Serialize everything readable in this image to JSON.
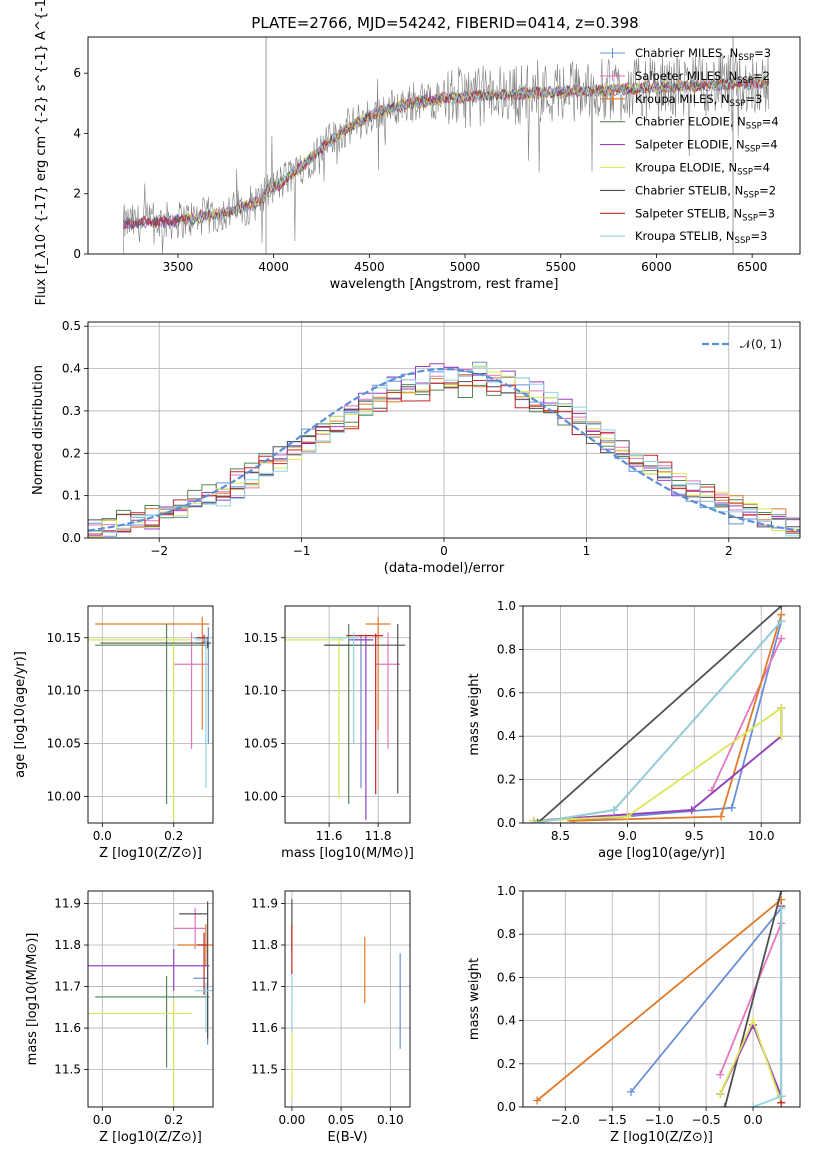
{
  "figure_title": "PLATE=2766, MJD=54242, FIBERID=0414, z=0.398",
  "colors": {
    "Chabrier MILES": "#6a8fd8",
    "Salpeter MILES": "#e377c2",
    "Kroupa MILES": "#e07b2a",
    "Chabrier ELODIE": "#55865a",
    "Salpeter ELODIE": "#9b3fc4",
    "Kroupa ELODIE": "#dce65a",
    "Chabrier STELIB": "#505050",
    "Salpeter STELIB": "#c0282a",
    "Kroupa STELIB": "#8fd6e3",
    "data": "#808080",
    "normal": "#5b8fd8"
  },
  "chart_data": [
    {
      "id": "spectrum",
      "type": "line",
      "xlabel": "wavelength [Angstrom, rest frame]",
      "ylabel": "Flux [f_λ10^{-17} erg cm^{-2} s^{-1} A^{-1}]",
      "xlim": [
        3030,
        6750
      ],
      "ylim": [
        0,
        7.2
      ],
      "xticks": [
        3500,
        4000,
        4500,
        5000,
        5500,
        6000,
        6500
      ],
      "yticks": [
        0,
        2,
        4,
        6
      ],
      "data_range": [
        3215,
        6590
      ],
      "legend": [
        {
          "label": "Chabrier MILES, N_SSP=3",
          "base": "Chabrier MILES, N",
          "sub": "SSP",
          "tail": "=3",
          "key": "Chabrier MILES"
        },
        {
          "label": "Salpeter MILES, N_SSP=2",
          "base": "Salpeter MILES, N",
          "sub": "SSP",
          "tail": "=2",
          "key": "Salpeter MILES"
        },
        {
          "label": "Kroupa MILES, N_SSP=3",
          "base": "Kroupa MILES, N",
          "sub": "SSP",
          "tail": "=3",
          "key": "Kroupa MILES"
        },
        {
          "label": "Chabrier ELODIE, N_SSP=4",
          "base": "Chabrier ELODIE, N",
          "sub": "SSP",
          "tail": "=4",
          "key": "Chabrier ELODIE"
        },
        {
          "label": "Salpeter ELODIE, N_SSP=4",
          "base": "Salpeter ELODIE, N",
          "sub": "SSP",
          "tail": "=4",
          "key": "Salpeter ELODIE"
        },
        {
          "label": "Kroupa ELODIE, N_SSP=4",
          "base": "Kroupa ELODIE, N",
          "sub": "SSP",
          "tail": "=4",
          "key": "Kroupa ELODIE"
        },
        {
          "label": "Chabrier STELIB, N_SSP=2",
          "base": "Chabrier STELIB, N",
          "sub": "SSP",
          "tail": "=2",
          "key": "Chabrier STELIB"
        },
        {
          "label": "Salpeter STELIB, N_SSP=3",
          "base": "Salpeter STELIB, N",
          "sub": "SSP",
          "tail": "=3",
          "key": "Salpeter STELIB"
        },
        {
          "label": "Kroupa STELIB, N_SSP=3",
          "base": "Kroupa STELIB, N",
          "sub": "SSP",
          "tail": "=3",
          "key": "Kroupa STELIB"
        }
      ]
    },
    {
      "id": "residuals",
      "type": "histogram",
      "xlabel": "(data-model)/error",
      "ylabel": "Normed distribution",
      "xlim": [
        -2.5,
        2.5
      ],
      "ylim": [
        0,
        0.51
      ],
      "xticks": [
        -2,
        -1,
        0,
        1,
        2
      ],
      "yticks": [
        0,
        0.1,
        0.2,
        0.3,
        0.4,
        0.5
      ],
      "legend": [
        {
          "label": "𝒩(0, 1)",
          "key": "normal"
        }
      ]
    },
    {
      "id": "age-vs-Z",
      "type": "errorbar",
      "xlabel": "Z [log10(Z/Z⊙)]",
      "ylabel": "age [log10(age/yr)]",
      "xlim": [
        -0.04,
        0.31
      ],
      "ylim": [
        9.975,
        10.18
      ],
      "xticks": [
        0.0,
        0.2
      ],
      "yticks": [
        10.0,
        10.05,
        10.1,
        10.15
      ],
      "points": [
        {
          "model": "Chabrier MILES",
          "x": 0.297,
          "xerr": [
            0.04,
            0.0
          ],
          "y": 10.15,
          "yerr": [
            0.1,
            0.01
          ]
        },
        {
          "model": "Salpeter MILES",
          "x": 0.25,
          "xerr": [
            0.05,
            0.05
          ],
          "y": 10.125,
          "yerr": [
            0.08,
            0.03
          ]
        },
        {
          "model": "Kroupa MILES",
          "x": 0.28,
          "xerr": [
            0.3,
            0.02
          ],
          "y": 10.163,
          "yerr": [
            0.1,
            0.007
          ]
        },
        {
          "model": "Chabrier ELODIE",
          "x": 0.18,
          "xerr": [
            0.2,
            0.12
          ],
          "y": 10.143,
          "yerr": [
            0.15,
            0.02
          ]
        },
        {
          "model": "Salpeter ELODIE",
          "x": 0.29,
          "xerr": [
            0.03,
            0.01
          ],
          "y": 10.145,
          "yerr": [
            0.005,
            0.005
          ]
        },
        {
          "model": "Kroupa ELODIE",
          "x": 0.2,
          "xerr": [
            0.25,
            0.05
          ],
          "y": 10.148,
          "yerr": [
            0.17,
            0.003
          ]
        },
        {
          "model": "Chabrier STELIB",
          "x": 0.295,
          "xerr": [
            0.3,
            0.01
          ],
          "y": 10.145,
          "yerr": [
            0.005,
            0.005
          ]
        },
        {
          "model": "Salpeter STELIB",
          "x": 0.285,
          "xerr": [
            0.02,
            0.01
          ],
          "y": 10.15,
          "yerr": [
            0.005,
            0.003
          ]
        },
        {
          "model": "Kroupa STELIB",
          "x": 0.29,
          "xerr": [
            0.03,
            0.01
          ],
          "y": 10.148,
          "yerr": [
            0.14,
            0.004
          ]
        }
      ]
    },
    {
      "id": "age-vs-mass",
      "type": "errorbar",
      "xlabel": "mass [log10(M/M⊙)]",
      "ylabel": "",
      "xlim": [
        11.42,
        11.93
      ],
      "ylim": [
        9.975,
        10.18
      ],
      "xticks": [
        11.6,
        11.8
      ],
      "yticks": [
        10.0,
        10.05,
        10.1,
        10.15
      ],
      "points": [
        {
          "model": "Chabrier MILES",
          "x": 11.73,
          "xerr": [
            0.05,
            0.02
          ],
          "y": 10.148,
          "yerr": [
            0.14,
            0.005
          ]
        },
        {
          "model": "Salpeter MILES",
          "x": 11.84,
          "xerr": [
            0.05,
            0.05
          ],
          "y": 10.125,
          "yerr": [
            0.08,
            0.03
          ]
        },
        {
          "model": "Kroupa MILES",
          "x": 11.8,
          "xerr": [
            0.05,
            0.05
          ],
          "y": 10.163,
          "yerr": [
            0.1,
            0.007
          ]
        },
        {
          "model": "Chabrier ELODIE",
          "x": 11.68,
          "xerr": [
            0.1,
            0.03
          ],
          "y": 10.143,
          "yerr": [
            0.15,
            0.02
          ]
        },
        {
          "model": "Salpeter ELODIE",
          "x": 11.75,
          "xerr": [
            0.06,
            0.03
          ],
          "y": 10.148,
          "yerr": [
            0.17,
            0.005
          ]
        },
        {
          "model": "Kroupa ELODIE",
          "x": 11.64,
          "xerr": [
            0.22,
            0.02
          ],
          "y": 10.148,
          "yerr": [
            0.15,
            0.003
          ]
        },
        {
          "model": "Chabrier STELIB",
          "x": 11.88,
          "xerr": [
            0.3,
            0.03
          ],
          "y": 10.143,
          "yerr": [
            0.14,
            0.02
          ]
        },
        {
          "model": "Salpeter STELIB",
          "x": 11.79,
          "xerr": [
            0.12,
            0.03
          ],
          "y": 10.152,
          "yerr": [
            0.15,
            0.002
          ]
        },
        {
          "model": "Kroupa STELIB",
          "x": 11.7,
          "xerr": [
            0.1,
            0.02
          ],
          "y": 10.15,
          "yerr": [
            0.1,
            0.005
          ]
        }
      ]
    },
    {
      "id": "mass-weight-vs-age",
      "type": "line",
      "xlabel": "age [log10(age/yr)]",
      "ylabel": "mass weight",
      "xlim": [
        8.22,
        10.29
      ],
      "ylim": [
        0,
        1.0
      ],
      "xticks": [
        8.5,
        9.0,
        9.5,
        10.0
      ],
      "yticks": [
        0,
        0.2,
        0.4,
        0.6,
        0.8,
        1.0
      ],
      "series": [
        {
          "model": "Chabrier MILES",
          "x": [
            8.6,
            9.78,
            10.15
          ],
          "y": [
            0.01,
            0.07,
            0.93
          ]
        },
        {
          "model": "Salpeter MILES",
          "x": [
            9.63,
            10.15
          ],
          "y": [
            0.15,
            0.85
          ]
        },
        {
          "model": "Kroupa MILES",
          "x": [
            8.58,
            9.7,
            10.15
          ],
          "y": [
            0.01,
            0.03,
            0.96
          ]
        },
        {
          "model": "Chabrier ELODIE",
          "x": [
            8.3,
            9.48,
            10.15,
            10.15
          ],
          "y": [
            0.01,
            0.06,
            0.4,
            0.53
          ]
        },
        {
          "model": "Salpeter ELODIE",
          "x": [
            8.3,
            9.48,
            10.15,
            10.15
          ],
          "y": [
            0.01,
            0.06,
            0.4,
            0.53
          ]
        },
        {
          "model": "Kroupa ELODIE",
          "x": [
            8.3,
            9.0,
            10.15,
            10.15
          ],
          "y": [
            0.01,
            0.03,
            0.53,
            0.4
          ]
        },
        {
          "model": "Chabrier STELIB",
          "x": [
            8.33,
            10.15
          ],
          "y": [
            0.0,
            1.0
          ]
        },
        {
          "model": "Salpeter STELIB",
          "x": [
            8.3,
            8.9,
            10.15
          ],
          "y": [
            0.0,
            0.06,
            0.93
          ]
        },
        {
          "model": "Kroupa STELIB",
          "x": [
            8.3,
            8.9,
            10.15
          ],
          "y": [
            0.0,
            0.06,
            0.93
          ]
        }
      ]
    },
    {
      "id": "mass-vs-Z",
      "type": "errorbar",
      "xlabel": "Z [log10(Z/Z⊙)]",
      "ylabel": "mass [log10(M/M⊙)]",
      "xlim": [
        -0.04,
        0.31
      ],
      "ylim": [
        11.41,
        11.93
      ],
      "xticks": [
        0.0,
        0.2
      ],
      "yticks": [
        11.5,
        11.6,
        11.7,
        11.8,
        11.9
      ],
      "points": [
        {
          "model": "Chabrier MILES",
          "x": 0.295,
          "xerr": [
            0.04,
            0.0
          ],
          "y": 11.72,
          "yerr": [
            0.16,
            0.02
          ]
        },
        {
          "model": "Salpeter MILES",
          "x": 0.26,
          "xerr": [
            0.06,
            0.03
          ],
          "y": 11.84,
          "yerr": [
            0.05,
            0.05
          ]
        },
        {
          "model": "Kroupa MILES",
          "x": 0.29,
          "xerr": [
            0.08,
            0.02
          ],
          "y": 11.8,
          "yerr": [
            0.05,
            0.05
          ]
        },
        {
          "model": "Chabrier ELODIE",
          "x": 0.18,
          "xerr": [
            0.2,
            0.12
          ],
          "y": 11.675,
          "yerr": [
            0.17,
            0.05
          ]
        },
        {
          "model": "Salpeter ELODIE",
          "x": 0.2,
          "xerr": [
            0.25,
            0.1
          ],
          "y": 11.75,
          "yerr": [
            0.06,
            0.04
          ]
        },
        {
          "model": "Kroupa ELODIE",
          "x": 0.2,
          "xerr": [
            0.25,
            0.05
          ],
          "y": 11.635,
          "yerr": [
            0.22,
            0.03
          ]
        },
        {
          "model": "Chabrier STELIB",
          "x": 0.295,
          "xerr": [
            0.08,
            0.0
          ],
          "y": 11.875,
          "yerr": [
            0.3,
            0.03
          ]
        },
        {
          "model": "Salpeter STELIB",
          "x": 0.285,
          "xerr": [
            0.02,
            0.01
          ],
          "y": 11.8,
          "yerr": [
            0.12,
            0.03
          ]
        },
        {
          "model": "Kroupa STELIB",
          "x": 0.29,
          "xerr": [
            0.03,
            0.02
          ],
          "y": 11.69,
          "yerr": [
            0.1,
            0.02
          ]
        }
      ]
    },
    {
      "id": "mass-vs-EBV",
      "type": "errorbar",
      "xlabel": "E(B-V)",
      "ylabel": "",
      "xlim": [
        -0.007,
        0.12
      ],
      "ylim": [
        11.41,
        11.93
      ],
      "xticks": [
        0.0,
        0.05,
        0.1
      ],
      "yticks": [
        11.5,
        11.6,
        11.7,
        11.8,
        11.9
      ],
      "points": [
        {
          "model": "Chabrier MILES",
          "x": 0.11,
          "xerr": [
            0,
            0
          ],
          "y": 11.665,
          "yerr": [
            0.115,
            0.115
          ]
        },
        {
          "model": "Kroupa MILES",
          "x": 0.074,
          "xerr": [
            0,
            0
          ],
          "y": 11.74,
          "yerr": [
            0.08,
            0.08
          ]
        },
        {
          "model": "Kroupa ELODIE",
          "x": 0.0,
          "xerr": [
            0,
            0
          ],
          "y": 11.55,
          "yerr": [
            0.12,
            0.1
          ]
        },
        {
          "model": "Kroupa STELIB",
          "x": 0.0,
          "xerr": [
            0,
            0
          ],
          "y": 11.69,
          "yerr": [
            0.1,
            0.05
          ]
        },
        {
          "model": "Chabrier STELIB",
          "x": 0.0,
          "xerr": [
            0,
            0
          ],
          "y": 11.83,
          "yerr": [
            0.05,
            0.08
          ]
        },
        {
          "model": "Salpeter STELIB",
          "x": 0.0,
          "xerr": [
            0,
            0
          ],
          "y": 11.79,
          "yerr": [
            0.06,
            0.06
          ]
        }
      ]
    },
    {
      "id": "mass-weight-vs-Z",
      "type": "line",
      "xlabel": "Z [log10(Z/Z⊙)]",
      "ylabel": "mass weight",
      "xlim": [
        -2.45,
        0.5
      ],
      "ylim": [
        0,
        1.0
      ],
      "xticks": [
        -2.0,
        -1.5,
        -1.0,
        -0.5,
        0.0
      ],
      "yticks": [
        0,
        0.2,
        0.4,
        0.6,
        0.8,
        1.0
      ],
      "series": [
        {
          "model": "Kroupa MILES",
          "x": [
            -2.3,
            0.3
          ],
          "y": [
            0.03,
            0.96
          ]
        },
        {
          "model": "Chabrier MILES",
          "x": [
            -1.3,
            0.3
          ],
          "y": [
            0.07,
            0.92
          ]
        },
        {
          "model": "Salpeter MILES",
          "x": [
            -0.35,
            0.3
          ],
          "y": [
            0.15,
            0.85
          ]
        },
        {
          "model": "Chabrier STELIB",
          "x": [
            -0.3,
            0.3
          ],
          "y": [
            0.0,
            1.0
          ]
        },
        {
          "model": "Chabrier ELODIE",
          "x": [
            -0.35,
            0.0,
            0.3
          ],
          "y": [
            0.06,
            0.38,
            0.05
          ]
        },
        {
          "model": "Salpeter ELODIE",
          "x": [
            -0.35,
            0.0,
            0.3
          ],
          "y": [
            0.06,
            0.38,
            0.05
          ]
        },
        {
          "model": "Kroupa ELODIE",
          "x": [
            -0.35,
            0.0,
            0.3
          ],
          "y": [
            0.06,
            0.4,
            0.02
          ]
        },
        {
          "model": "Salpeter STELIB",
          "x": [
            0.3,
            0.3
          ],
          "y": [
            0.02,
            0.93
          ]
        },
        {
          "model": "Kroupa STELIB",
          "x": [
            0.0,
            0.3,
            0.3
          ],
          "y": [
            0.0,
            0.05,
            0.92
          ]
        }
      ]
    }
  ]
}
